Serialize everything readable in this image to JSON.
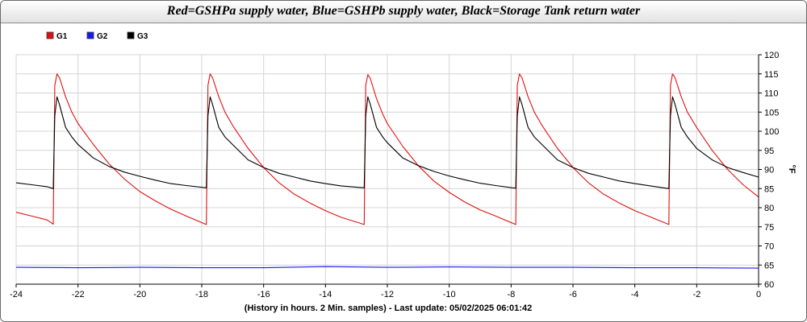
{
  "chart_data": {
    "type": "line",
    "title": "Red=GSHPa supply water, Blue=GSHPb supply water, Black=Storage Tank return water",
    "xlabel": "(History in hours. 2 Min. samples) - Last update: 05/02/2025 06:01:42",
    "ylabel": "°F",
    "xlim": [
      -24,
      0
    ],
    "ylim": [
      60,
      120
    ],
    "x_ticks": [
      "-24",
      "-22",
      "-20",
      "-18",
      "-16",
      "-14",
      "-12",
      "-10",
      "-8",
      "-6",
      "-4",
      "-2",
      "0"
    ],
    "y_ticks": [
      "60",
      "65",
      "70",
      "75",
      "80",
      "85",
      "90",
      "95",
      "100",
      "105",
      "110",
      "115",
      "120"
    ],
    "grid": true,
    "legend_position": "top-left",
    "series": [
      {
        "name": "G1",
        "color": "#e01010",
        "x": [
          -24,
          -23.5,
          -23,
          -22.8,
          -22.75,
          -22.68,
          -22.6,
          -22.4,
          -22.2,
          -22,
          -21.5,
          -21,
          -20.5,
          -20,
          -19.5,
          -19,
          -18.5,
          -17.85,
          -17.8,
          -17.73,
          -17.65,
          -17.45,
          -17.25,
          -17,
          -16.5,
          -16,
          -15.5,
          -15,
          -14.5,
          -14,
          -13.5,
          -12.75,
          -12.7,
          -12.63,
          -12.55,
          -12.35,
          -12.15,
          -12,
          -11.5,
          -11,
          -10.5,
          -10,
          -9.5,
          -9,
          -8.5,
          -7.85,
          -7.8,
          -7.73,
          -7.65,
          -7.45,
          -7.25,
          -7,
          -6.5,
          -6,
          -5.5,
          -5,
          -4.5,
          -4,
          -3.5,
          -2.9,
          -2.85,
          -2.78,
          -2.7,
          -2.5,
          -2.3,
          -2,
          -1.5,
          -1,
          -0.5,
          0
        ],
        "values": [
          78.8,
          77.8,
          76.8,
          75.7,
          112,
          115,
          114,
          109,
          105,
          102,
          96.5,
          91.5,
          87.5,
          84.2,
          81.8,
          79.6,
          77.8,
          75.6,
          112,
          115,
          114,
          109,
          105,
          101.5,
          95.5,
          90.5,
          86.5,
          83.5,
          81.2,
          79.2,
          77.5,
          75.6,
          112,
          114.8,
          113.8,
          108.5,
          104.5,
          102,
          96,
          91,
          87,
          84,
          81.5,
          79.4,
          77.8,
          75.6,
          112,
          115,
          114,
          109,
          105,
          101.5,
          95.5,
          90.5,
          86.5,
          83.5,
          81.2,
          79.2,
          77.6,
          75.6,
          112,
          115,
          114,
          109,
          105,
          101,
          95,
          90,
          86,
          82.8
        ]
      },
      {
        "name": "G2",
        "color": "#1a1af0",
        "x": [
          -24,
          -22,
          -20,
          -18,
          -16,
          -14,
          -12,
          -10,
          -8,
          -6,
          -4,
          -2,
          0
        ],
        "values": [
          64.4,
          64.3,
          64.4,
          64.3,
          64.3,
          64.6,
          64.4,
          64.5,
          64.4,
          64.4,
          64.3,
          64.3,
          64.2
        ]
      },
      {
        "name": "G3",
        "color": "#000000",
        "x": [
          -24,
          -23.5,
          -23,
          -22.8,
          -22.75,
          -22.68,
          -22.6,
          -22.4,
          -22.2,
          -22,
          -21.5,
          -21,
          -20.5,
          -20,
          -19.5,
          -19,
          -18.5,
          -17.85,
          -17.8,
          -17.73,
          -17.65,
          -17.45,
          -17.25,
          -17,
          -16.5,
          -16,
          -15.5,
          -15,
          -14.5,
          -14,
          -13.5,
          -12.75,
          -12.7,
          -12.63,
          -12.55,
          -12.35,
          -12.15,
          -12,
          -11.5,
          -11,
          -10.5,
          -10,
          -9.5,
          -9,
          -8.5,
          -7.85,
          -7.8,
          -7.73,
          -7.65,
          -7.45,
          -7.25,
          -7,
          -6.5,
          -6,
          -5.5,
          -5,
          -4.5,
          -4,
          -3.5,
          -2.9,
          -2.85,
          -2.78,
          -2.7,
          -2.5,
          -2.3,
          -2,
          -1.5,
          -1,
          -0.5,
          0
        ],
        "values": [
          86.5,
          86,
          85.5,
          85,
          104,
          109,
          107,
          101,
          98.5,
          96.5,
          93,
          90.8,
          89.3,
          88.2,
          87.2,
          86.3,
          85.8,
          85.2,
          104,
          109,
          107,
          101,
          98.5,
          96.5,
          92.5,
          90.5,
          89,
          88,
          87,
          86.3,
          85.7,
          85.2,
          104,
          109,
          107,
          101,
          98.5,
          97,
          93,
          91,
          89.5,
          88.3,
          87.3,
          86.4,
          85.8,
          85.1,
          104,
          109,
          107,
          101,
          98.5,
          96.5,
          92.5,
          90.5,
          89,
          88,
          87,
          86.3,
          85.7,
          85,
          104,
          109,
          107,
          101,
          98.5,
          95.5,
          92.5,
          90.5,
          89.2,
          88
        ]
      }
    ]
  }
}
